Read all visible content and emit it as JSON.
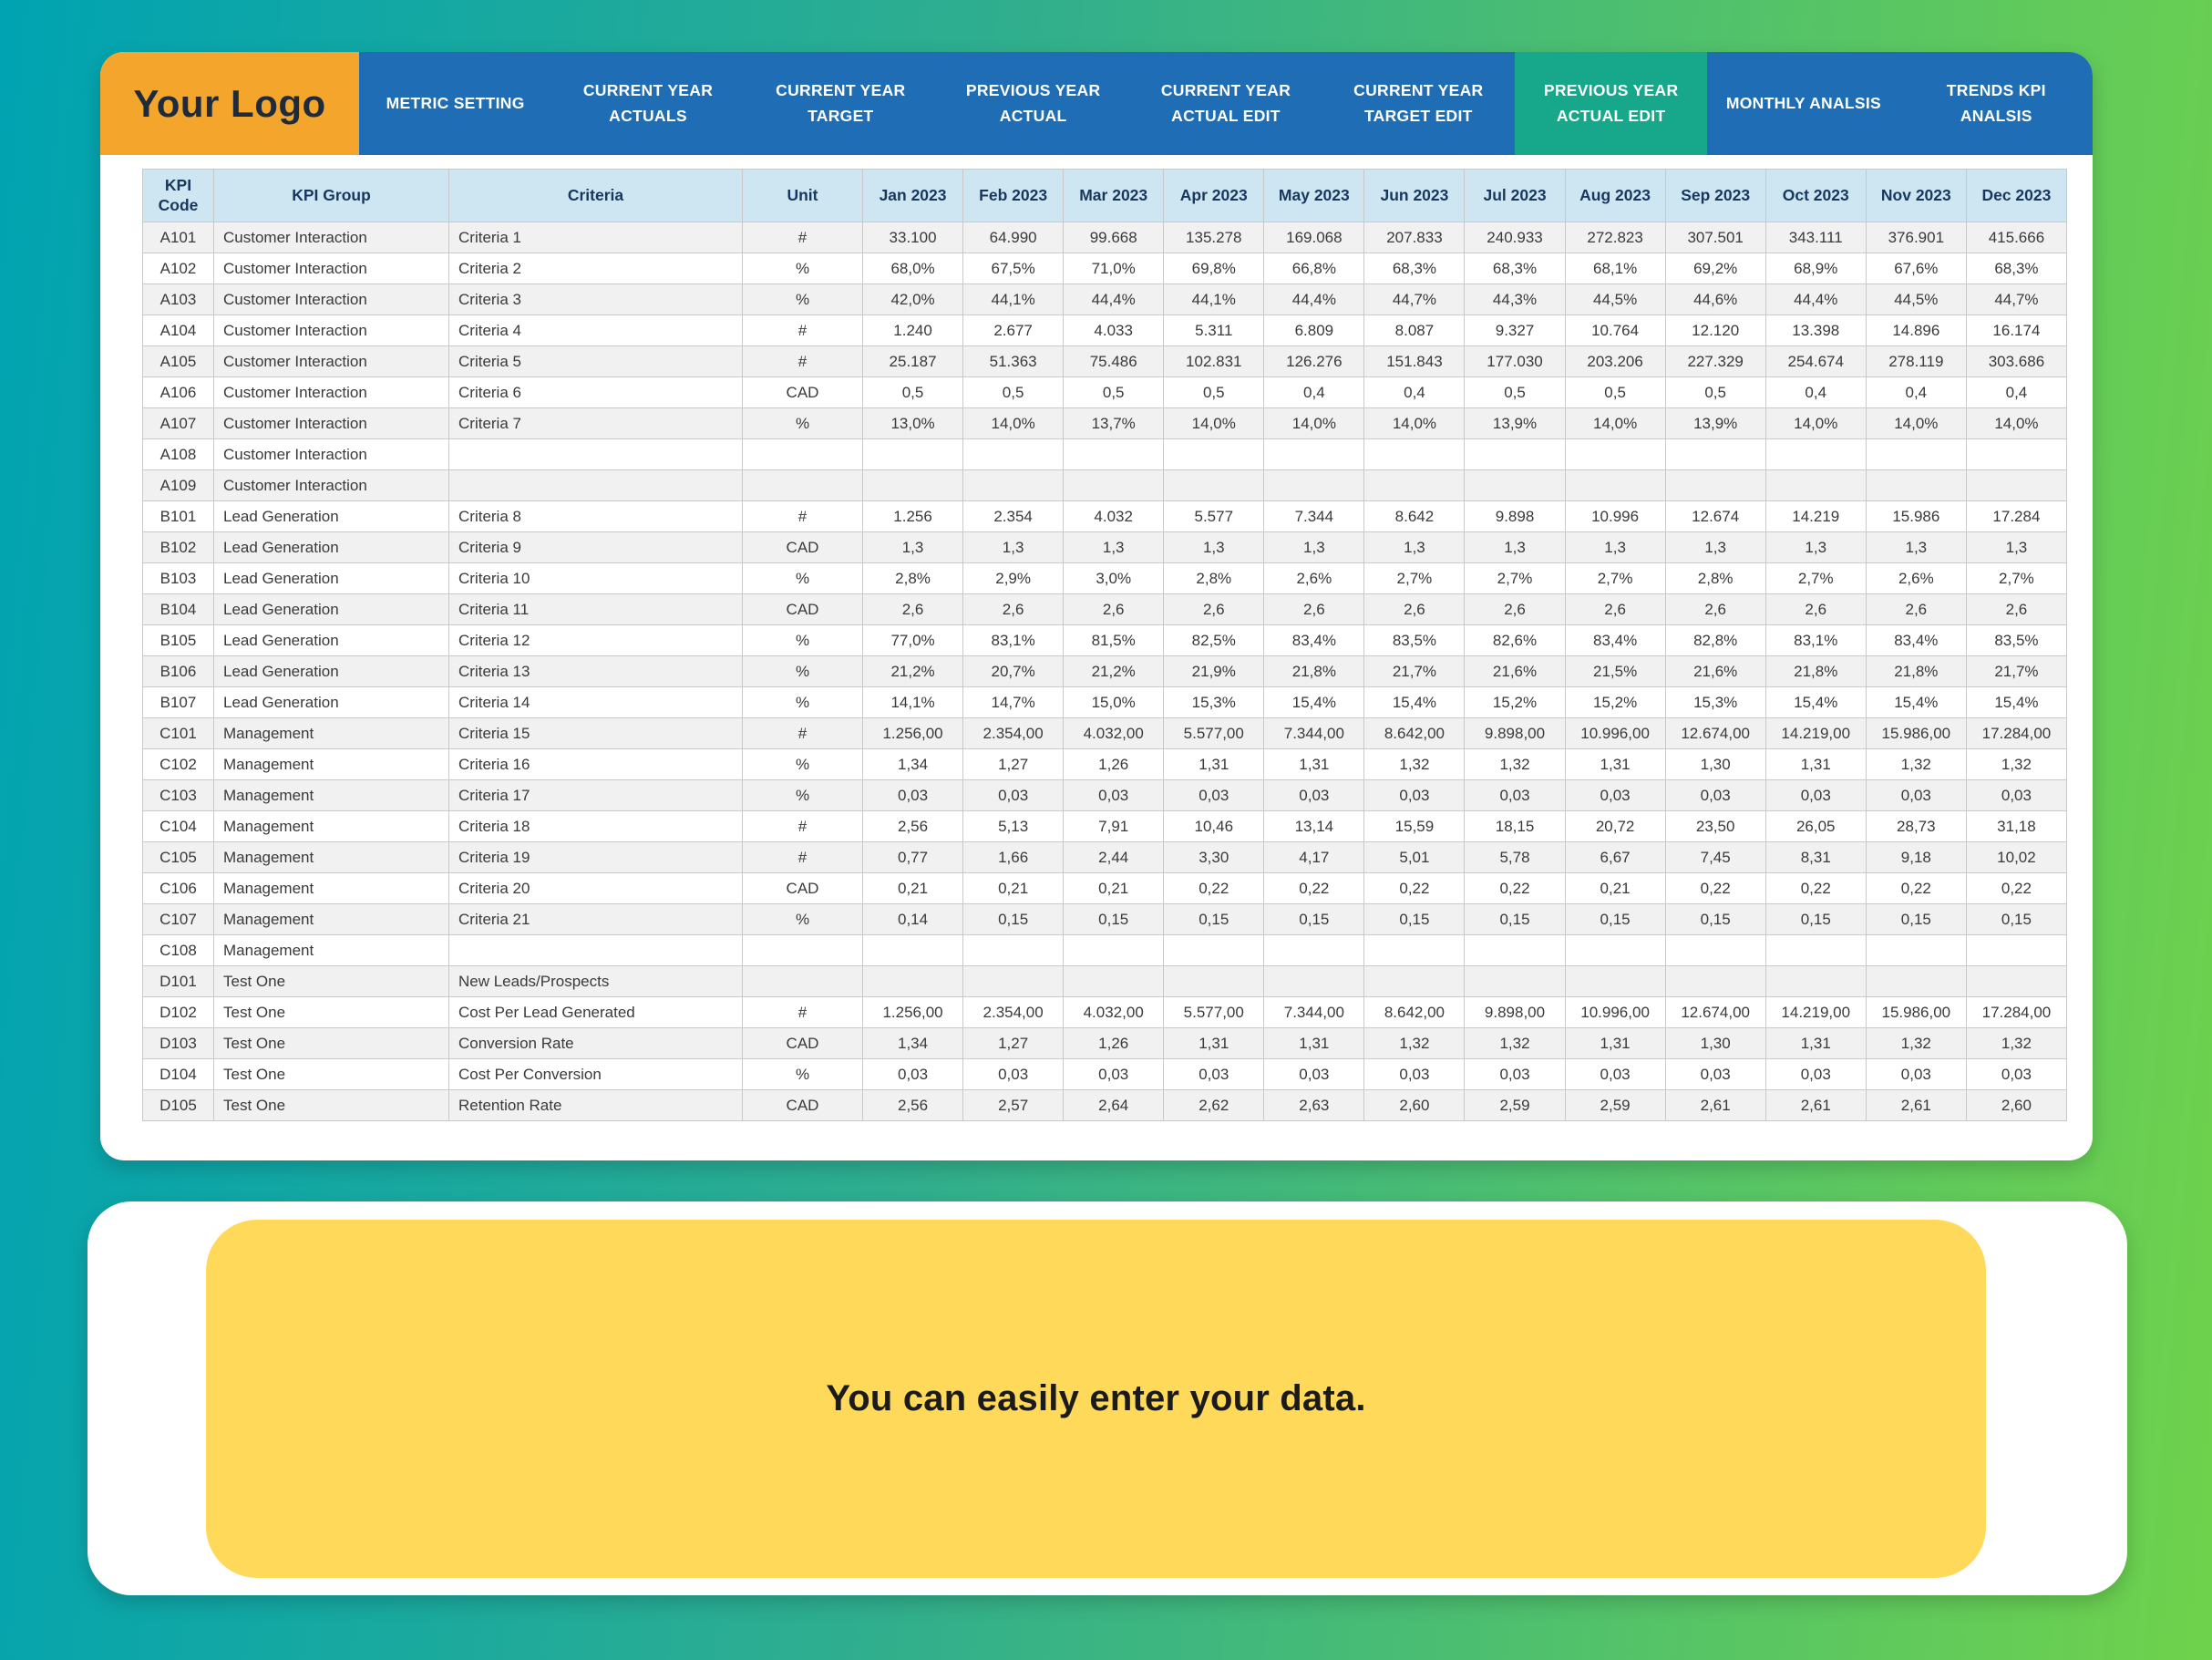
{
  "colors": {
    "nav-blue": "#1F6EB5",
    "active-tab": "#17A88C",
    "logo-orange": "#F4A62C",
    "logo-text": "#1E2B3C",
    "header-bg": "#CEE5F2",
    "header-text": "#17375D",
    "banner-yellow": "#FFD95A",
    "row-stripe": "#F1F1F1",
    "grid-border": "#C9C9C9",
    "body-grad-left": "#00A3B2",
    "body-grad-right": "#6FD24C"
  },
  "nav": {
    "logo": "Your Logo",
    "tabs": [
      {
        "label": "METRIC SETTING",
        "active": false
      },
      {
        "label": "CURRENT YEAR ACTUALS",
        "active": false
      },
      {
        "label": "CURRENT YEAR TARGET",
        "active": false
      },
      {
        "label": "PREVIOUS YEAR ACTUAL",
        "active": false
      },
      {
        "label": "CURRENT YEAR ACTUAL EDIT",
        "active": false
      },
      {
        "label": "CURRENT YEAR TARGET EDIT",
        "active": false
      },
      {
        "label": "PREVIOUS YEAR ACTUAL EDIT",
        "active": true
      },
      {
        "label": "MONTHLY ANALSIS",
        "active": false
      },
      {
        "label": "TRENDS KPI ANALSIS",
        "active": false
      }
    ]
  },
  "table": {
    "headers": [
      "KPI Code",
      "KPI Group",
      "Criteria",
      "Unit",
      "Jan 2023",
      "Feb 2023",
      "Mar 2023",
      "Apr 2023",
      "May 2023",
      "Jun 2023",
      "Jul 2023",
      "Aug 2023",
      "Sep 2023",
      "Oct 2023",
      "Nov 2023",
      "Dec 2023"
    ],
    "rows": [
      {
        "code": "A101",
        "group": "Customer Interaction",
        "criteria": "Criteria 1",
        "unit": "#",
        "values": [
          "33.100",
          "64.990",
          "99.668",
          "135.278",
          "169.068",
          "207.833",
          "240.933",
          "272.823",
          "307.501",
          "343.111",
          "376.901",
          "415.666"
        ]
      },
      {
        "code": "A102",
        "group": "Customer Interaction",
        "criteria": "Criteria 2",
        "unit": "%",
        "values": [
          "68,0%",
          "67,5%",
          "71,0%",
          "69,8%",
          "66,8%",
          "68,3%",
          "68,3%",
          "68,1%",
          "69,2%",
          "68,9%",
          "67,6%",
          "68,3%"
        ]
      },
      {
        "code": "A103",
        "group": "Customer Interaction",
        "criteria": "Criteria 3",
        "unit": "%",
        "values": [
          "42,0%",
          "44,1%",
          "44,4%",
          "44,1%",
          "44,4%",
          "44,7%",
          "44,3%",
          "44,5%",
          "44,6%",
          "44,4%",
          "44,5%",
          "44,7%"
        ]
      },
      {
        "code": "A104",
        "group": "Customer Interaction",
        "criteria": "Criteria 4",
        "unit": "#",
        "values": [
          "1.240",
          "2.677",
          "4.033",
          "5.311",
          "6.809",
          "8.087",
          "9.327",
          "10.764",
          "12.120",
          "13.398",
          "14.896",
          "16.174"
        ]
      },
      {
        "code": "A105",
        "group": "Customer Interaction",
        "criteria": "Criteria 5",
        "unit": "#",
        "values": [
          "25.187",
          "51.363",
          "75.486",
          "102.831",
          "126.276",
          "151.843",
          "177.030",
          "203.206",
          "227.329",
          "254.674",
          "278.119",
          "303.686"
        ]
      },
      {
        "code": "A106",
        "group": "Customer Interaction",
        "criteria": "Criteria 6",
        "unit": "CAD",
        "values": [
          "0,5",
          "0,5",
          "0,5",
          "0,5",
          "0,4",
          "0,4",
          "0,5",
          "0,5",
          "0,5",
          "0,4",
          "0,4",
          "0,4"
        ]
      },
      {
        "code": "A107",
        "group": "Customer Interaction",
        "criteria": "Criteria 7",
        "unit": "%",
        "values": [
          "13,0%",
          "14,0%",
          "13,7%",
          "14,0%",
          "14,0%",
          "14,0%",
          "13,9%",
          "14,0%",
          "13,9%",
          "14,0%",
          "14,0%",
          "14,0%"
        ]
      },
      {
        "code": "A108",
        "group": "Customer Interaction",
        "criteria": "",
        "unit": "",
        "values": [
          "",
          "",
          "",
          "",
          "",
          "",
          "",
          "",
          "",
          "",
          "",
          ""
        ]
      },
      {
        "code": "A109",
        "group": "Customer Interaction",
        "criteria": "",
        "unit": "",
        "values": [
          "",
          "",
          "",
          "",
          "",
          "",
          "",
          "",
          "",
          "",
          "",
          ""
        ]
      },
      {
        "code": "B101",
        "group": "Lead Generation",
        "criteria": "Criteria 8",
        "unit": "#",
        "values": [
          "1.256",
          "2.354",
          "4.032",
          "5.577",
          "7.344",
          "8.642",
          "9.898",
          "10.996",
          "12.674",
          "14.219",
          "15.986",
          "17.284"
        ]
      },
      {
        "code": "B102",
        "group": "Lead Generation",
        "criteria": "Criteria 9",
        "unit": "CAD",
        "values": [
          "1,3",
          "1,3",
          "1,3",
          "1,3",
          "1,3",
          "1,3",
          "1,3",
          "1,3",
          "1,3",
          "1,3",
          "1,3",
          "1,3"
        ]
      },
      {
        "code": "B103",
        "group": "Lead Generation",
        "criteria": "Criteria 10",
        "unit": "%",
        "values": [
          "2,8%",
          "2,9%",
          "3,0%",
          "2,8%",
          "2,6%",
          "2,7%",
          "2,7%",
          "2,7%",
          "2,8%",
          "2,7%",
          "2,6%",
          "2,7%"
        ]
      },
      {
        "code": "B104",
        "group": "Lead Generation",
        "criteria": "Criteria 11",
        "unit": "CAD",
        "values": [
          "2,6",
          "2,6",
          "2,6",
          "2,6",
          "2,6",
          "2,6",
          "2,6",
          "2,6",
          "2,6",
          "2,6",
          "2,6",
          "2,6"
        ]
      },
      {
        "code": "B105",
        "group": "Lead Generation",
        "criteria": "Criteria 12",
        "unit": "%",
        "values": [
          "77,0%",
          "83,1%",
          "81,5%",
          "82,5%",
          "83,4%",
          "83,5%",
          "82,6%",
          "83,4%",
          "82,8%",
          "83,1%",
          "83,4%",
          "83,5%"
        ]
      },
      {
        "code": "B106",
        "group": "Lead Generation",
        "criteria": "Criteria 13",
        "unit": "%",
        "values": [
          "21,2%",
          "20,7%",
          "21,2%",
          "21,9%",
          "21,8%",
          "21,7%",
          "21,6%",
          "21,5%",
          "21,6%",
          "21,8%",
          "21,8%",
          "21,7%"
        ]
      },
      {
        "code": "B107",
        "group": "Lead Generation",
        "criteria": "Criteria 14",
        "unit": "%",
        "values": [
          "14,1%",
          "14,7%",
          "15,0%",
          "15,3%",
          "15,4%",
          "15,4%",
          "15,2%",
          "15,2%",
          "15,3%",
          "15,4%",
          "15,4%",
          "15,4%"
        ]
      },
      {
        "code": "C101",
        "group": "Management",
        "criteria": "Criteria 15",
        "unit": "#",
        "values": [
          "1.256,00",
          "2.354,00",
          "4.032,00",
          "5.577,00",
          "7.344,00",
          "8.642,00",
          "9.898,00",
          "10.996,00",
          "12.674,00",
          "14.219,00",
          "15.986,00",
          "17.284,00"
        ]
      },
      {
        "code": "C102",
        "group": "Management",
        "criteria": "Criteria 16",
        "unit": "%",
        "values": [
          "1,34",
          "1,27",
          "1,26",
          "1,31",
          "1,31",
          "1,32",
          "1,32",
          "1,31",
          "1,30",
          "1,31",
          "1,32",
          "1,32"
        ]
      },
      {
        "code": "C103",
        "group": "Management",
        "criteria": "Criteria 17",
        "unit": "%",
        "values": [
          "0,03",
          "0,03",
          "0,03",
          "0,03",
          "0,03",
          "0,03",
          "0,03",
          "0,03",
          "0,03",
          "0,03",
          "0,03",
          "0,03"
        ]
      },
      {
        "code": "C104",
        "group": "Management",
        "criteria": "Criteria 18",
        "unit": "#",
        "values": [
          "2,56",
          "5,13",
          "7,91",
          "10,46",
          "13,14",
          "15,59",
          "18,15",
          "20,72",
          "23,50",
          "26,05",
          "28,73",
          "31,18"
        ]
      },
      {
        "code": "C105",
        "group": "Management",
        "criteria": "Criteria 19",
        "unit": "#",
        "values": [
          "0,77",
          "1,66",
          "2,44",
          "3,30",
          "4,17",
          "5,01",
          "5,78",
          "6,67",
          "7,45",
          "8,31",
          "9,18",
          "10,02"
        ]
      },
      {
        "code": "C106",
        "group": "Management",
        "criteria": "Criteria 20",
        "unit": "CAD",
        "values": [
          "0,21",
          "0,21",
          "0,21",
          "0,22",
          "0,22",
          "0,22",
          "0,22",
          "0,21",
          "0,22",
          "0,22",
          "0,22",
          "0,22"
        ]
      },
      {
        "code": "C107",
        "group": "Management",
        "criteria": "Criteria 21",
        "unit": "%",
        "values": [
          "0,14",
          "0,15",
          "0,15",
          "0,15",
          "0,15",
          "0,15",
          "0,15",
          "0,15",
          "0,15",
          "0,15",
          "0,15",
          "0,15"
        ]
      },
      {
        "code": "C108",
        "group": "Management",
        "criteria": "",
        "unit": "",
        "values": [
          "",
          "",
          "",
          "",
          "",
          "",
          "",
          "",
          "",
          "",
          "",
          ""
        ]
      },
      {
        "code": "D101",
        "group": "Test One",
        "criteria": "New Leads/Prospects",
        "unit": "",
        "values": [
          "",
          "",
          "",
          "",
          "",
          "",
          "",
          "",
          "",
          "",
          "",
          ""
        ]
      },
      {
        "code": "D102",
        "group": "Test One",
        "criteria": "Cost Per Lead Generated",
        "unit": "#",
        "values": [
          "1.256,00",
          "2.354,00",
          "4.032,00",
          "5.577,00",
          "7.344,00",
          "8.642,00",
          "9.898,00",
          "10.996,00",
          "12.674,00",
          "14.219,00",
          "15.986,00",
          "17.284,00"
        ]
      },
      {
        "code": "D103",
        "group": "Test One",
        "criteria": "Conversion Rate",
        "unit": "CAD",
        "values": [
          "1,34",
          "1,27",
          "1,26",
          "1,31",
          "1,31",
          "1,32",
          "1,32",
          "1,31",
          "1,30",
          "1,31",
          "1,32",
          "1,32"
        ]
      },
      {
        "code": "D104",
        "group": "Test One",
        "criteria": "Cost Per Conversion",
        "unit": "%",
        "values": [
          "0,03",
          "0,03",
          "0,03",
          "0,03",
          "0,03",
          "0,03",
          "0,03",
          "0,03",
          "0,03",
          "0,03",
          "0,03",
          "0,03"
        ]
      },
      {
        "code": "D105",
        "group": "Test One",
        "criteria": "Retention Rate",
        "unit": "CAD",
        "values": [
          "2,56",
          "2,57",
          "2,64",
          "2,62",
          "2,63",
          "2,60",
          "2,59",
          "2,59",
          "2,61",
          "2,61",
          "2,61",
          "2,60"
        ]
      }
    ]
  },
  "banner": {
    "text": "You can easily enter your data."
  }
}
